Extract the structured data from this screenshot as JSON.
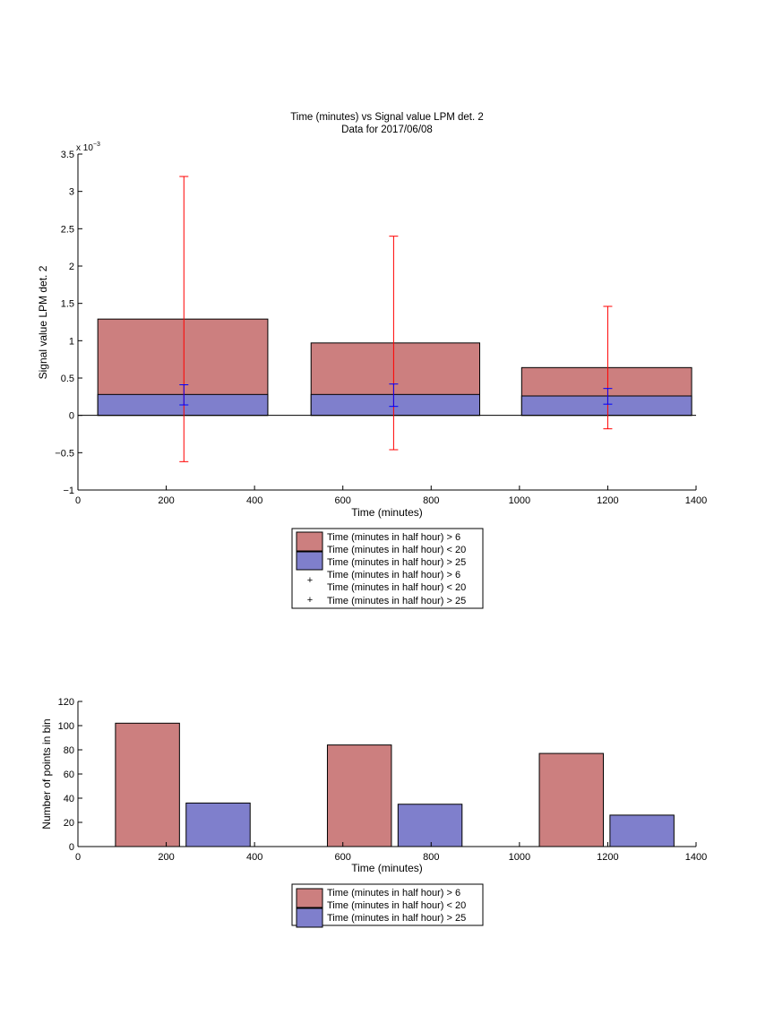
{
  "chart_data": [
    {
      "type": "bar",
      "title": "Time (minutes) vs Signal value LPM det. 2",
      "subtitle": "Data for 2017/06/08",
      "xlabel": "Time (minutes)",
      "ylabel": "Signal value LPM det. 2",
      "y_exponent_label": "x 10",
      "y_exponent_power": "−3",
      "xlim": [
        0,
        1400
      ],
      "ylim": [
        -1,
        3.5
      ],
      "x_ticks": [
        "0",
        "200",
        "400",
        "600",
        "800",
        "1000",
        "1200",
        "1400"
      ],
      "y_ticks": [
        "−1",
        "−0.5",
        "0",
        "0.5",
        "1",
        "1.5",
        "2",
        "2.5",
        "3",
        "3.5"
      ],
      "bar_color_1": "#cc7f7f",
      "bar_color_2": "#7f7fcc",
      "err_color_1": "#ff0000",
      "err_color_2": "#0000ff",
      "bars": [
        {
          "x_start": 45,
          "x_end": 430,
          "value_1": 1.29,
          "value_2": 0.28
        },
        {
          "x_start": 528,
          "x_end": 910,
          "value_1": 0.97,
          "value_2": 0.28
        },
        {
          "x_start": 1005,
          "x_end": 1390,
          "value_1": 0.64,
          "value_2": 0.26
        }
      ],
      "errorbars_1": [
        {
          "x": 240,
          "low": -0.62,
          "high": 3.2
        },
        {
          "x": 715,
          "low": -0.46,
          "high": 2.4
        },
        {
          "x": 1200,
          "low": -0.18,
          "high": 1.46
        }
      ],
      "errorbars_2": [
        {
          "x": 240,
          "low": 0.14,
          "high": 0.41
        },
        {
          "x": 715,
          "low": 0.12,
          "high": 0.42
        },
        {
          "x": 1200,
          "low": 0.15,
          "high": 0.36
        }
      ],
      "legend": {
        "placement": "below",
        "patch_1_label": "Time (minutes in half hour) > 6",
        "patch_1_label_b": "Time (minutes in half hour) < 20",
        "patch_2_label": "Time (minutes in half hour) > 25",
        "marker_1_label": "Time (minutes in half hour) > 6",
        "marker_1_label_b": "Time (minutes in half hour) < 20",
        "marker_2_label": "Time (minutes in half hour) > 25",
        "marker_symbol": "+"
      }
    },
    {
      "type": "bar",
      "xlabel": "Time (minutes)",
      "ylabel": "Number of points in bin",
      "xlim": [
        0,
        1400
      ],
      "ylim": [
        0,
        120
      ],
      "x_ticks": [
        "0",
        "200",
        "400",
        "600",
        "800",
        "1000",
        "1200",
        "1400"
      ],
      "y_ticks": [
        "0",
        "20",
        "40",
        "60",
        "80",
        "100",
        "120"
      ],
      "bars": [
        {
          "x_start": 85,
          "x_end": 230,
          "value": 102,
          "series": 1
        },
        {
          "x_start": 245,
          "x_end": 390,
          "value": 36,
          "series": 2
        },
        {
          "x_start": 565,
          "x_end": 710,
          "value": 84,
          "series": 1
        },
        {
          "x_start": 725,
          "x_end": 870,
          "value": 35,
          "series": 2
        },
        {
          "x_start": 1045,
          "x_end": 1190,
          "value": 77,
          "series": 1
        },
        {
          "x_start": 1205,
          "x_end": 1350,
          "value": 26,
          "series": 2
        }
      ],
      "legend": {
        "placement": "below",
        "patch_1_label": "Time (minutes in half hour) > 6",
        "patch_1_label_b": "Time (minutes in half hour) < 20",
        "patch_2_label": "Time (minutes in half hour) > 25"
      }
    }
  ]
}
